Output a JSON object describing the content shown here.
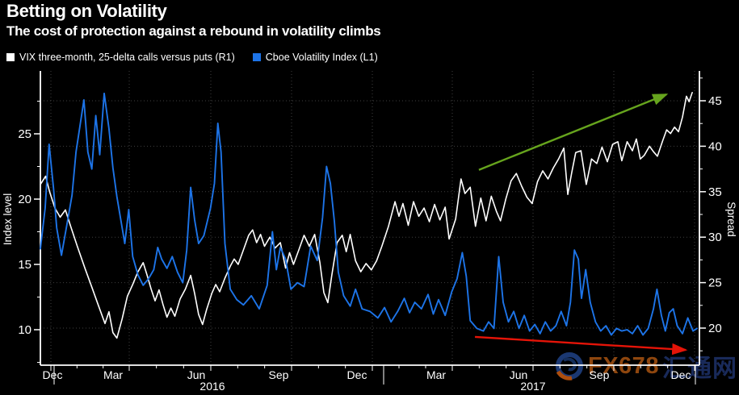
{
  "header": {
    "title": "Betting on Volatility",
    "subtitle": "The cost of protection against a rebound in volatility climbs"
  },
  "legend": [
    {
      "label": "VIX three-month, 25-delta calls versus puts (R1)",
      "color": "#ffffff"
    },
    {
      "label": "Cboe Volatility Index (L1)",
      "color": "#1d74e8"
    }
  ],
  "watermark": {
    "text_en": "FX678",
    "text_cn": "汇通网",
    "en_color": "#94490f",
    "cn_color": "#1b2c5e"
  },
  "chart_data": {
    "type": "line",
    "background": "#000000",
    "grid": "dotted",
    "left_axis": {
      "title": "Index level",
      "ticks": [
        10,
        15,
        20,
        25
      ],
      "minor_ticks": [
        7.5,
        12.5,
        17.5,
        22.5,
        27.5
      ],
      "range": [
        7.3,
        29.8
      ]
    },
    "right_axis": {
      "title": "Spread",
      "ticks": [
        20,
        25,
        30,
        35,
        40,
        45
      ],
      "minor_ticks": [
        17.5,
        22.5,
        27.5,
        32.5,
        37.5,
        42.5,
        47.5
      ],
      "range": [
        15.9,
        48.3
      ]
    },
    "x_axis": {
      "start": "2015-12",
      "end": "2017-12",
      "quarter_labels": [
        "Dec",
        "Mar",
        "Jun",
        "Sep",
        "Dec",
        "Mar",
        "Jun",
        "Sep",
        "Dec"
      ],
      "year_labels": [
        "2016",
        "2017"
      ]
    },
    "series": [
      {
        "name": "VIX three-month, 25-delta calls versus puts",
        "axis": "right",
        "color": "#ffffff",
        "points": [
          [
            0,
            35.8
          ],
          [
            0.2,
            36.7
          ],
          [
            0.35,
            35.0
          ],
          [
            0.55,
            33.2
          ],
          [
            0.75,
            32.2
          ],
          [
            0.95,
            33.0
          ],
          [
            1.15,
            31.2
          ],
          [
            1.4,
            29.0
          ],
          [
            1.7,
            26.5
          ],
          [
            1.95,
            24.5
          ],
          [
            2.2,
            22.5
          ],
          [
            2.45,
            20.5
          ],
          [
            2.6,
            21.8
          ],
          [
            2.75,
            19.5
          ],
          [
            2.9,
            18.9
          ],
          [
            3.1,
            21.0
          ],
          [
            3.3,
            23.5
          ],
          [
            3.5,
            24.8
          ],
          [
            3.7,
            26.2
          ],
          [
            3.9,
            27.2
          ],
          [
            4.05,
            25.8
          ],
          [
            4.2,
            24.3
          ],
          [
            4.35,
            23.0
          ],
          [
            4.5,
            24.2
          ],
          [
            4.65,
            22.6
          ],
          [
            4.8,
            21.2
          ],
          [
            4.95,
            22.2
          ],
          [
            5.1,
            21.3
          ],
          [
            5.3,
            23.2
          ],
          [
            5.5,
            24.3
          ],
          [
            5.7,
            25.8
          ],
          [
            5.85,
            23.8
          ],
          [
            6.0,
            21.5
          ],
          [
            6.15,
            20.4
          ],
          [
            6.3,
            22.0
          ],
          [
            6.5,
            23.8
          ],
          [
            6.65,
            24.8
          ],
          [
            6.8,
            24.0
          ],
          [
            7.0,
            25.5
          ],
          [
            7.2,
            26.8
          ],
          [
            7.35,
            27.6
          ],
          [
            7.5,
            27.0
          ],
          [
            7.7,
            28.6
          ],
          [
            7.9,
            30.2
          ],
          [
            8.05,
            30.8
          ],
          [
            8.2,
            29.4
          ],
          [
            8.35,
            30.3
          ],
          [
            8.5,
            29.0
          ],
          [
            8.7,
            30.0
          ],
          [
            8.9,
            28.8
          ],
          [
            9.1,
            29.4
          ],
          [
            9.3,
            26.6
          ],
          [
            9.45,
            28.3
          ],
          [
            9.6,
            27.0
          ],
          [
            9.8,
            28.6
          ],
          [
            10.0,
            30.2
          ],
          [
            10.2,
            29.0
          ],
          [
            10.4,
            30.3
          ],
          [
            10.6,
            27.2
          ],
          [
            10.75,
            23.9
          ],
          [
            10.9,
            22.8
          ],
          [
            11.05,
            25.8
          ],
          [
            11.25,
            29.4
          ],
          [
            11.45,
            30.2
          ],
          [
            11.6,
            28.4
          ],
          [
            11.75,
            30.3
          ],
          [
            11.95,
            27.4
          ],
          [
            12.15,
            26.2
          ],
          [
            12.35,
            27.1
          ],
          [
            12.55,
            26.4
          ],
          [
            12.75,
            27.4
          ],
          [
            12.95,
            29.0
          ],
          [
            13.2,
            31.2
          ],
          [
            13.45,
            33.9
          ],
          [
            13.6,
            32.3
          ],
          [
            13.75,
            33.7
          ],
          [
            13.95,
            31.3
          ],
          [
            14.15,
            33.9
          ],
          [
            14.35,
            32.3
          ],
          [
            14.55,
            33.2
          ],
          [
            14.75,
            31.7
          ],
          [
            14.95,
            33.6
          ],
          [
            15.15,
            31.9
          ],
          [
            15.35,
            33.3
          ],
          [
            15.5,
            29.8
          ],
          [
            15.75,
            32.0
          ],
          [
            15.95,
            36.4
          ],
          [
            16.1,
            34.8
          ],
          [
            16.3,
            35.5
          ],
          [
            16.5,
            31.2
          ],
          [
            16.7,
            34.3
          ],
          [
            16.9,
            31.8
          ],
          [
            17.1,
            34.5
          ],
          [
            17.3,
            32.8
          ],
          [
            17.45,
            31.8
          ],
          [
            17.65,
            34.2
          ],
          [
            17.85,
            36.2
          ],
          [
            18.05,
            37.0
          ],
          [
            18.25,
            35.6
          ],
          [
            18.45,
            34.4
          ],
          [
            18.65,
            33.7
          ],
          [
            18.85,
            36.1
          ],
          [
            19.05,
            37.3
          ],
          [
            19.25,
            36.4
          ],
          [
            19.45,
            37.6
          ],
          [
            19.65,
            38.6
          ],
          [
            19.85,
            39.8
          ],
          [
            20.0,
            34.7
          ],
          [
            20.15,
            37.1
          ],
          [
            20.3,
            39.3
          ],
          [
            20.5,
            39.5
          ],
          [
            20.7,
            35.8
          ],
          [
            20.9,
            38.6
          ],
          [
            21.1,
            38.1
          ],
          [
            21.3,
            39.9
          ],
          [
            21.5,
            38.3
          ],
          [
            21.7,
            40.2
          ],
          [
            21.9,
            40.5
          ],
          [
            22.05,
            38.4
          ],
          [
            22.25,
            40.5
          ],
          [
            22.45,
            39.5
          ],
          [
            22.6,
            40.8
          ],
          [
            22.75,
            38.6
          ],
          [
            22.9,
            39.0
          ],
          [
            23.1,
            40.0
          ],
          [
            23.25,
            39.4
          ],
          [
            23.4,
            38.9
          ],
          [
            23.6,
            40.6
          ],
          [
            23.75,
            41.8
          ],
          [
            23.9,
            41.4
          ],
          [
            24.05,
            42.1
          ],
          [
            24.2,
            41.6
          ],
          [
            24.35,
            43.2
          ],
          [
            24.5,
            45.5
          ],
          [
            24.6,
            44.9
          ],
          [
            24.72,
            45.9
          ]
        ]
      },
      {
        "name": "Cboe Volatility Index",
        "axis": "left",
        "color": "#1d74e8",
        "points": [
          [
            0,
            16.2
          ],
          [
            0.18,
            19.3
          ],
          [
            0.33,
            24.2
          ],
          [
            0.5,
            20.8
          ],
          [
            0.62,
            17.8
          ],
          [
            0.8,
            15.7
          ],
          [
            1.0,
            18.0
          ],
          [
            1.2,
            20.3
          ],
          [
            1.35,
            23.6
          ],
          [
            1.5,
            25.6
          ],
          [
            1.65,
            27.6
          ],
          [
            1.8,
            23.6
          ],
          [
            1.95,
            22.3
          ],
          [
            2.1,
            26.4
          ],
          [
            2.25,
            23.4
          ],
          [
            2.42,
            28.1
          ],
          [
            2.6,
            25.4
          ],
          [
            2.75,
            22.4
          ],
          [
            2.9,
            20.2
          ],
          [
            3.05,
            18.4
          ],
          [
            3.2,
            16.6
          ],
          [
            3.35,
            19.2
          ],
          [
            3.5,
            15.6
          ],
          [
            3.7,
            14.2
          ],
          [
            3.9,
            13.4
          ],
          [
            4.1,
            13.9
          ],
          [
            4.3,
            14.6
          ],
          [
            4.45,
            16.3
          ],
          [
            4.6,
            15.4
          ],
          [
            4.8,
            14.7
          ],
          [
            5.0,
            15.6
          ],
          [
            5.2,
            14.4
          ],
          [
            5.4,
            13.6
          ],
          [
            5.55,
            16.1
          ],
          [
            5.7,
            20.9
          ],
          [
            5.85,
            18.4
          ],
          [
            6.0,
            16.6
          ],
          [
            6.2,
            17.2
          ],
          [
            6.45,
            19.3
          ],
          [
            6.6,
            21.2
          ],
          [
            6.73,
            25.8
          ],
          [
            6.85,
            23.6
          ],
          [
            7.0,
            16.6
          ],
          [
            7.2,
            13.1
          ],
          [
            7.45,
            12.3
          ],
          [
            7.7,
            11.9
          ],
          [
            8.0,
            12.6
          ],
          [
            8.3,
            11.6
          ],
          [
            8.6,
            13.4
          ],
          [
            8.8,
            17.5
          ],
          [
            8.95,
            14.6
          ],
          [
            9.1,
            16.3
          ],
          [
            9.3,
            15.4
          ],
          [
            9.5,
            13.1
          ],
          [
            9.75,
            13.6
          ],
          [
            10.0,
            13.3
          ],
          [
            10.25,
            16.4
          ],
          [
            10.5,
            15.3
          ],
          [
            10.7,
            18.6
          ],
          [
            10.85,
            22.5
          ],
          [
            11.0,
            21.2
          ],
          [
            11.15,
            18.3
          ],
          [
            11.3,
            14.4
          ],
          [
            11.5,
            12.6
          ],
          [
            11.75,
            11.8
          ],
          [
            11.95,
            13.1
          ],
          [
            12.2,
            11.6
          ],
          [
            12.5,
            11.4
          ],
          [
            12.8,
            10.9
          ],
          [
            13.05,
            11.7
          ],
          [
            13.3,
            10.6
          ],
          [
            13.55,
            11.4
          ],
          [
            13.8,
            12.4
          ],
          [
            14.0,
            11.3
          ],
          [
            14.2,
            12.1
          ],
          [
            14.45,
            11.6
          ],
          [
            14.7,
            12.7
          ],
          [
            14.9,
            11.2
          ],
          [
            15.1,
            12.3
          ],
          [
            15.35,
            11.1
          ],
          [
            15.6,
            12.9
          ],
          [
            15.8,
            13.9
          ],
          [
            16.0,
            15.9
          ],
          [
            16.15,
            14.1
          ],
          [
            16.3,
            10.7
          ],
          [
            16.55,
            10.1
          ],
          [
            16.8,
            9.9
          ],
          [
            17.0,
            10.6
          ],
          [
            17.2,
            10.1
          ],
          [
            17.38,
            15.6
          ],
          [
            17.55,
            12.1
          ],
          [
            17.75,
            10.6
          ],
          [
            17.95,
            11.4
          ],
          [
            18.15,
            10.1
          ],
          [
            18.35,
            11.1
          ],
          [
            18.55,
            9.9
          ],
          [
            18.75,
            10.4
          ],
          [
            18.95,
            9.7
          ],
          [
            19.15,
            10.6
          ],
          [
            19.35,
            9.9
          ],
          [
            19.55,
            10.3
          ],
          [
            19.75,
            11.4
          ],
          [
            19.95,
            10.3
          ],
          [
            20.1,
            12.1
          ],
          [
            20.25,
            16.1
          ],
          [
            20.4,
            15.4
          ],
          [
            20.52,
            12.4
          ],
          [
            20.68,
            14.6
          ],
          [
            20.85,
            12.1
          ],
          [
            21.05,
            10.6
          ],
          [
            21.25,
            9.9
          ],
          [
            21.45,
            10.3
          ],
          [
            21.65,
            9.6
          ],
          [
            21.85,
            10.1
          ],
          [
            22.05,
            9.9
          ],
          [
            22.25,
            10.0
          ],
          [
            22.45,
            9.7
          ],
          [
            22.65,
            10.3
          ],
          [
            22.85,
            9.6
          ],
          [
            23.05,
            10.1
          ],
          [
            23.25,
            11.6
          ],
          [
            23.38,
            13.1
          ],
          [
            23.55,
            11.1
          ],
          [
            23.7,
            9.9
          ],
          [
            23.85,
            11.3
          ],
          [
            24.0,
            11.6
          ],
          [
            24.15,
            10.3
          ],
          [
            24.35,
            9.7
          ],
          [
            24.55,
            10.9
          ],
          [
            24.75,
            9.9
          ],
          [
            24.9,
            10.1
          ]
        ]
      }
    ],
    "annotations": [
      {
        "type": "arrow",
        "name": "rising-spread-arrow",
        "color": "#66a41d",
        "axis": "right",
        "from": [
          16.63,
          37.4
        ],
        "to": [
          23.74,
          45.7
        ]
      },
      {
        "type": "arrow",
        "name": "falling-vix-arrow",
        "color": "#e51408",
        "axis": "left",
        "from": [
          16.48,
          9.45
        ],
        "to": [
          24.47,
          8.45
        ]
      }
    ]
  }
}
